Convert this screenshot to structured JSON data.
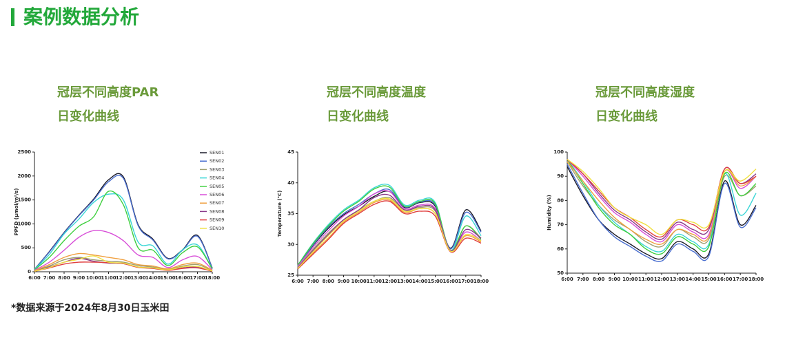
{
  "header": {
    "title": "案例数据分析"
  },
  "footnote": "*数据来源于2024年8月30日玉米田",
  "chart_data": [
    {
      "type": "line",
      "title": "冠层不同高度PAR",
      "subtitle": "日变化曲线",
      "ylabel": "PPFD (μmol/m²/s)",
      "categories": [
        "6:00",
        "7:00",
        "8:00",
        "9:00",
        "10:00",
        "11:00",
        "12:00",
        "13:00",
        "14:00",
        "15:00",
        "16:00",
        "17:00",
        "18:00"
      ],
      "ylim": [
        0,
        2500
      ],
      "yticks": [
        0,
        500,
        1000,
        1500,
        2000,
        2500
      ],
      "legend": "upper right",
      "series": [
        {
          "name": "SEN01",
          "color": "#1a1a2a",
          "values": [
            50,
            420,
            820,
            1180,
            1520,
            1920,
            1980,
            980,
            680,
            280,
            460,
            760,
            80
          ]
        },
        {
          "name": "SEN02",
          "color": "#4a6fd0",
          "values": [
            50,
            410,
            810,
            1170,
            1500,
            1880,
            1950,
            960,
            660,
            270,
            450,
            740,
            75
          ]
        },
        {
          "name": "SEN03",
          "color": "#a0a070",
          "values": [
            20,
            120,
            250,
            300,
            250,
            220,
            200,
            130,
            100,
            50,
            120,
            150,
            20
          ]
        },
        {
          "name": "SEN04",
          "color": "#3ad6d6",
          "values": [
            50,
            360,
            790,
            1100,
            1450,
            1620,
            1500,
            620,
            540,
            160,
            460,
            560,
            60
          ]
        },
        {
          "name": "SEN05",
          "color": "#3fcf3f",
          "values": [
            40,
            300,
            650,
            950,
            1150,
            1680,
            1400,
            500,
            450,
            130,
            400,
            520,
            60
          ]
        },
        {
          "name": "SEN06",
          "color": "#d84fd8",
          "values": [
            30,
            200,
            450,
            720,
            860,
            820,
            650,
            350,
            300,
            90,
            250,
            320,
            40
          ]
        },
        {
          "name": "SEN07",
          "color": "#f0a040",
          "values": [
            20,
            150,
            300,
            380,
            350,
            300,
            250,
            150,
            120,
            60,
            150,
            180,
            30
          ]
        },
        {
          "name": "SEN08",
          "color": "#8a3a8a",
          "values": [
            10,
            100,
            200,
            280,
            220,
            180,
            170,
            100,
            80,
            40,
            80,
            100,
            15
          ]
        },
        {
          "name": "SEN09",
          "color": "#e04040",
          "values": [
            10,
            80,
            160,
            200,
            200,
            190,
            170,
            90,
            70,
            30,
            70,
            80,
            10
          ]
        },
        {
          "name": "SEN10",
          "color": "#f0e040",
          "values": [
            10,
            90,
            200,
            260,
            330,
            200,
            180,
            100,
            80,
            40,
            100,
            110,
            15
          ]
        }
      ]
    },
    {
      "type": "line",
      "title": "冠层不同高度温度",
      "subtitle": "日变化曲线",
      "ylabel": "Temperature (℃)",
      "categories": [
        "6:00",
        "7:00",
        "8:00",
        "9:00",
        "10:00",
        "11:00",
        "12:00",
        "13:00",
        "14:00",
        "15:00",
        "16:00",
        "17:00",
        "18:00"
      ],
      "ylim": [
        25,
        45
      ],
      "yticks": [
        25,
        30,
        35,
        40,
        45
      ],
      "series": [
        {
          "color": "#1a1a2a",
          "values": [
            26.5,
            29.8,
            32.6,
            34.8,
            36.2,
            37.8,
            38.6,
            36,
            36.8,
            36.2,
            29.4,
            35.6,
            32.2
          ]
        },
        {
          "color": "#4a6fd0",
          "values": [
            26.5,
            29.9,
            32.8,
            35,
            36.5,
            38.2,
            38.9,
            36.1,
            36.9,
            36.4,
            29.3,
            35.2,
            32
          ]
        },
        {
          "color": "#a0a070",
          "values": [
            26.3,
            29.2,
            31.8,
            34,
            35.6,
            37,
            37.6,
            35.6,
            36,
            35.4,
            29.1,
            33,
            31
          ]
        },
        {
          "color": "#3ad6d6",
          "values": [
            26.6,
            30.2,
            33.2,
            35.6,
            37.2,
            39.2,
            39.6,
            36.4,
            37.2,
            36.8,
            29,
            34.6,
            31.4
          ]
        },
        {
          "color": "#3fcf3f",
          "values": [
            26.6,
            30.1,
            33,
            35.4,
            37,
            39,
            39.3,
            36.2,
            37,
            36.6,
            29,
            33,
            30.8
          ]
        },
        {
          "color": "#d84fd8",
          "values": [
            26.4,
            29.5,
            32.2,
            34.6,
            36.2,
            38.2,
            38.6,
            35.8,
            36.4,
            35.8,
            29,
            32,
            30.6
          ]
        },
        {
          "color": "#f0a040",
          "values": [
            26.1,
            28.6,
            31,
            33.6,
            35.2,
            36.8,
            37.2,
            35.2,
            35.8,
            35,
            28.9,
            31.4,
            30.4
          ]
        },
        {
          "color": "#8a3a8a",
          "values": [
            26.2,
            29,
            31.6,
            34,
            35.6,
            37.6,
            38,
            35.6,
            36.2,
            35.6,
            29,
            32.4,
            31
          ]
        },
        {
          "color": "#e04040",
          "values": [
            26,
            28.4,
            30.8,
            33.4,
            35,
            36.5,
            37,
            35,
            35.4,
            34.6,
            28.8,
            31,
            30.2
          ]
        },
        {
          "color": "#f0e040",
          "values": [
            26.1,
            28.8,
            31.4,
            33.8,
            35.4,
            37,
            37.4,
            35.4,
            35.8,
            35,
            28.9,
            31.6,
            30.6
          ]
        }
      ]
    },
    {
      "type": "line",
      "title": "冠层不同高度湿度",
      "subtitle": "日变化曲线",
      "ylabel": "Humidity (%)",
      "categories": [
        "6:00",
        "7:00",
        "8:00",
        "9:00",
        "10:00",
        "11:00",
        "12:00",
        "13:00",
        "14:00",
        "15:00",
        "16:00",
        "17:00",
        "18:00"
      ],
      "ylim": [
        50,
        100
      ],
      "yticks": [
        50,
        60,
        70,
        80,
        90,
        100
      ],
      "series": [
        {
          "color": "#1a1a2a",
          "values": [
            94,
            82,
            72,
            66,
            62,
            58,
            56,
            63,
            60,
            58,
            88,
            70,
            78
          ]
        },
        {
          "color": "#4a6fd0",
          "values": [
            95,
            83,
            72,
            65,
            61,
            57,
            55,
            62,
            59,
            57,
            87,
            69,
            77
          ]
        },
        {
          "color": "#a0a070",
          "values": [
            96,
            86,
            78,
            72,
            68,
            63,
            61,
            68,
            65,
            64,
            90,
            82,
            86
          ]
        },
        {
          "color": "#3ad6d6",
          "values": [
            97,
            88,
            78,
            71,
            66,
            61,
            59,
            66,
            63,
            62,
            91,
            74,
            83
          ]
        },
        {
          "color": "#3fcf3f",
          "values": [
            97,
            87,
            77,
            70,
            66,
            60,
            58,
            65,
            62,
            61,
            91,
            82,
            87
          ]
        },
        {
          "color": "#d84fd8",
          "values": [
            97,
            90,
            82,
            75,
            71,
            66,
            63,
            70,
            67,
            66,
            92,
            85,
            90
          ]
        },
        {
          "color": "#f0a040",
          "values": [
            96,
            88,
            80,
            73,
            68,
            64,
            62,
            68,
            66,
            65,
            92,
            86,
            90
          ]
        },
        {
          "color": "#8a3a8a",
          "values": [
            97,
            91,
            83,
            76,
            72,
            67,
            64,
            71,
            68,
            68,
            93,
            87,
            91
          ]
        },
        {
          "color": "#e04040",
          "values": [
            97,
            91,
            84,
            77,
            73,
            68,
            65,
            72,
            70,
            69,
            93,
            87,
            90
          ]
        },
        {
          "color": "#f0e040",
          "values": [
            97,
            92,
            85,
            77,
            73,
            70,
            66,
            72,
            71,
            70,
            92,
            88,
            93
          ]
        }
      ]
    }
  ]
}
